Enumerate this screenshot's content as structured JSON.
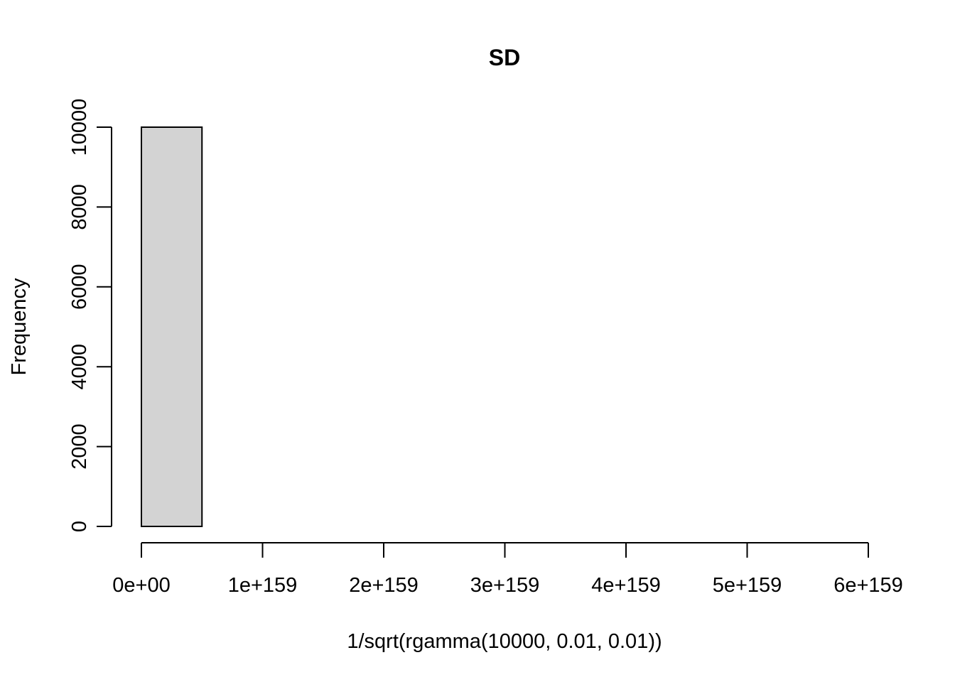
{
  "chart_data": {
    "type": "bar",
    "title": "SD",
    "xlabel": "1/sqrt(rgamma(10000, 0.01, 0.01))",
    "ylabel": "Frequency",
    "x_ticks": [
      {
        "value": 0,
        "label": "0e+00"
      },
      {
        "value": 1,
        "label": "1e+159"
      },
      {
        "value": 2,
        "label": "2e+159"
      },
      {
        "value": 3,
        "label": "3e+159"
      },
      {
        "value": 4,
        "label": "4e+159"
      },
      {
        "value": 5,
        "label": "5e+159"
      },
      {
        "value": 6,
        "label": "6e+159"
      }
    ],
    "x_unit_scale": "1e+159",
    "y_ticks": [
      {
        "value": 0,
        "label": "0"
      },
      {
        "value": 2000,
        "label": "2000"
      },
      {
        "value": 4000,
        "label": "4000"
      },
      {
        "value": 6000,
        "label": "6000"
      },
      {
        "value": 8000,
        "label": "8000"
      },
      {
        "value": 10000,
        "label": "10000"
      }
    ],
    "xlim": [
      0,
      6
    ],
    "ylim": [
      0,
      10000
    ],
    "bins": [
      {
        "start": 0.0,
        "end": 0.5,
        "count": 10000
      },
      {
        "start": 0.5,
        "end": 1.0,
        "count": 0
      },
      {
        "start": 1.0,
        "end": 1.5,
        "count": 0
      },
      {
        "start": 1.5,
        "end": 2.0,
        "count": 0
      },
      {
        "start": 2.0,
        "end": 2.5,
        "count": 0
      },
      {
        "start": 2.5,
        "end": 3.0,
        "count": 0
      },
      {
        "start": 3.0,
        "end": 3.5,
        "count": 0
      },
      {
        "start": 3.5,
        "end": 4.0,
        "count": 0
      },
      {
        "start": 4.0,
        "end": 4.5,
        "count": 0
      },
      {
        "start": 4.5,
        "end": 5.0,
        "count": 0
      },
      {
        "start": 5.0,
        "end": 5.5,
        "count": 0
      },
      {
        "start": 5.5,
        "end": 6.0,
        "count": 0
      }
    ],
    "bar_fill": "#d3d3d3",
    "grid": false,
    "legend": "none"
  }
}
